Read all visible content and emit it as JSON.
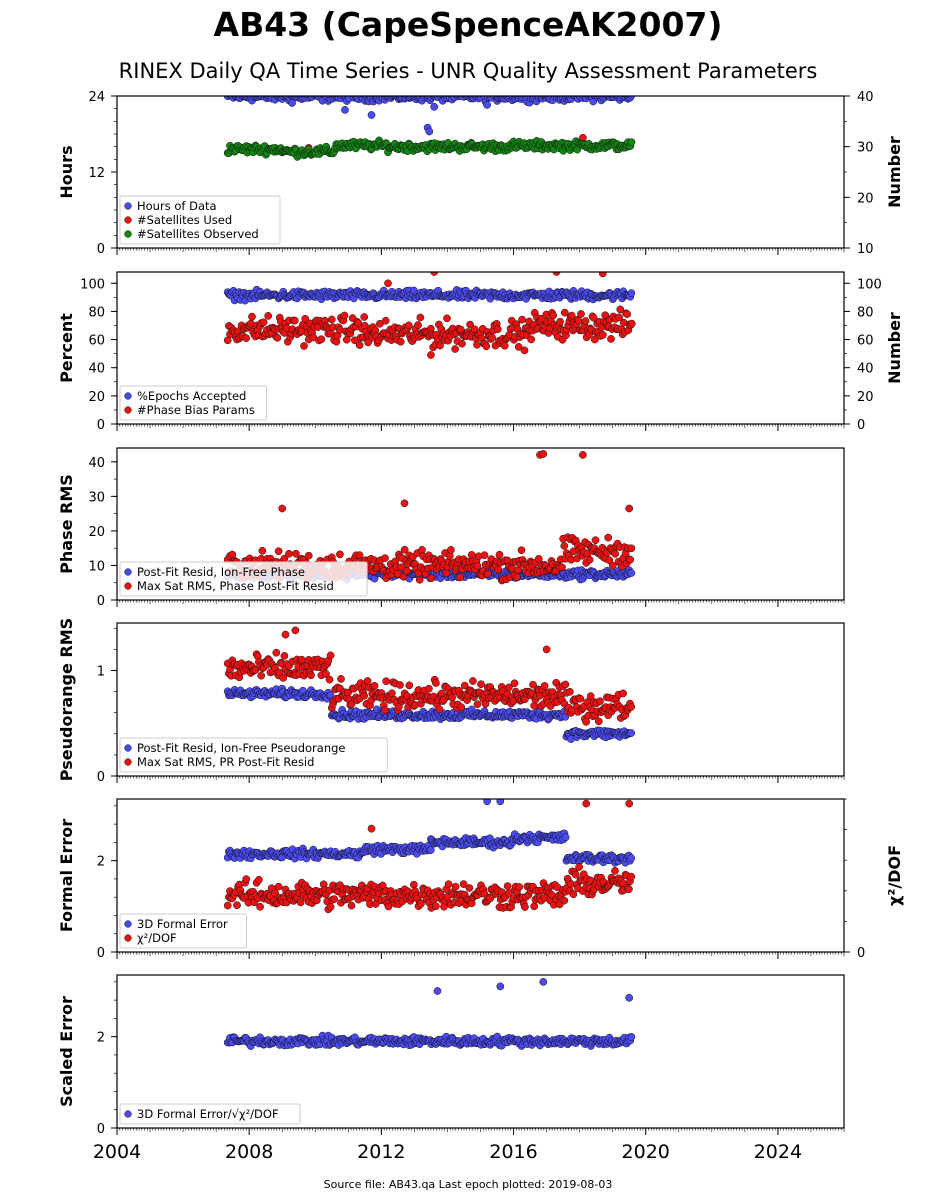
{
  "figure": {
    "title": "AB43 (CapeSpenceAK2007)",
    "subtitle": "RINEX Daily QA Time Series - UNR Quality Assessment Parameters",
    "footer": "Source file: AB43.qa Last epoch plotted: 2019-08-03",
    "data_span": [
      "2007.35",
      "2019.59"
    ]
  },
  "colors": {
    "blue": "#4b4bf5",
    "red": "#ee1111",
    "green": "#118811",
    "edge": "#111111"
  },
  "chart_data": [
    {
      "type": "scatter",
      "xlim": [
        2004,
        2026
      ],
      "xticks": [
        2004,
        2008,
        2012,
        2016,
        2020,
        2024
      ],
      "ylabel": "Hours",
      "ylim": [
        0,
        24
      ],
      "yticks": [
        0,
        12,
        24
      ],
      "y2label": "Number",
      "y2lim": [
        10,
        40
      ],
      "y2ticks": [
        10,
        20,
        30,
        40
      ],
      "legend": "lower-left",
      "series": [
        {
          "name": "Hours of Data",
          "color": "blue",
          "axis": "left",
          "base": 23.9,
          "segments": [
            [
              2007.35,
              2019.59,
              23.9
            ]
          ],
          "outliers": [
            [
              2010.9,
              21.8
            ],
            [
              2011.7,
              21.0
            ],
            [
              2013.4,
              19.0
            ],
            [
              2013.45,
              18.4
            ],
            [
              2013.6,
              22.3
            ],
            [
              2015.2,
              22.6
            ],
            [
              2009.3,
              22.9
            ]
          ]
        },
        {
          "name": "#Satellites Used",
          "color": "red",
          "axis": "left",
          "segments": [],
          "outliers": [
            [
              2018.1,
              17.4
            ],
            [
              2009.8,
              15.8
            ]
          ]
        },
        {
          "name": "#Satellites Observed",
          "color": "green",
          "axis": "right",
          "segments": [
            [
              2007.35,
              2009.0,
              29.5
            ],
            [
              2009.0,
              2010.6,
              29.0
            ],
            [
              2010.6,
              2012.2,
              30.2
            ],
            [
              2012.2,
              2016.0,
              30.0
            ],
            [
              2016.0,
              2019.59,
              30.2
            ]
          ],
          "outliers": []
        }
      ]
    },
    {
      "type": "scatter",
      "xlim": [
        2004,
        2026
      ],
      "xticks": [
        2004,
        2008,
        2012,
        2016,
        2020,
        2024
      ],
      "ylabel": "Percent",
      "ylim": [
        0,
        108
      ],
      "yticks": [
        0,
        20,
        40,
        60,
        80,
        100
      ],
      "y2label": "Number",
      "y2lim": [
        0,
        108
      ],
      "y2ticks": [
        0,
        20,
        40,
        60,
        80,
        100
      ],
      "legend": "lower-left",
      "series": [
        {
          "name": "%Epochs Accepted",
          "color": "blue",
          "axis": "left",
          "segments": [
            [
              2007.35,
              2019.59,
              91.5
            ]
          ],
          "outliers": []
        },
        {
          "name": "#Phase Bias Params",
          "color": "red",
          "axis": "right",
          "segments": [
            [
              2007.35,
              2011.5,
              67
            ],
            [
              2011.5,
              2016.5,
              64
            ],
            [
              2016.5,
              2019.59,
              70
            ]
          ],
          "outliers": [
            [
              2012.2,
              100
            ],
            [
              2013.6,
              108
            ],
            [
              2017.3,
              108
            ],
            [
              2018.7,
              107
            ],
            [
              2013.5,
              49
            ],
            [
              2011.6,
              58
            ]
          ]
        }
      ]
    },
    {
      "type": "scatter",
      "xlim": [
        2004,
        2026
      ],
      "xticks": [
        2004,
        2008,
        2012,
        2016,
        2020,
        2024
      ],
      "ylabel": "Phase RMS",
      "ylim": [
        0,
        44
      ],
      "yticks": [
        0,
        10,
        20,
        30,
        40
      ],
      "legend": "lower-left",
      "series": [
        {
          "name": "Post-Fit Resid, Ion-Free Phase",
          "color": "blue",
          "axis": "left",
          "segments": [
            [
              2007.35,
              2019.59,
              7.5
            ]
          ],
          "outliers": []
        },
        {
          "name": "Max Sat RMS, Phase Post-Fit Resid",
          "color": "red",
          "axis": "left",
          "segments": [
            [
              2007.35,
              2017.5,
              10
            ],
            [
              2017.5,
              2019.59,
              14
            ]
          ],
          "outliers": [
            [
              2016.8,
              42
            ],
            [
              2016.9,
              42.3
            ],
            [
              2018.1,
              42
            ],
            [
              2009.0,
              26.5
            ],
            [
              2012.7,
              28
            ],
            [
              2019.5,
              26.5
            ]
          ]
        }
      ]
    },
    {
      "type": "scatter",
      "xlim": [
        2004,
        2026
      ],
      "xticks": [
        2004,
        2008,
        2012,
        2016,
        2020,
        2024
      ],
      "ylabel": "Pseudorange RMS",
      "ylim": [
        0,
        1.45
      ],
      "yticks": [
        0,
        1
      ],
      "legend": "lower-left",
      "series": [
        {
          "name": "Post-Fit Resid, Ion-Free Pseudorange",
          "color": "blue",
          "axis": "left",
          "segments": [
            [
              2007.35,
              2010.5,
              0.78
            ],
            [
              2010.5,
              2017.6,
              0.58
            ],
            [
              2017.6,
              2019.59,
              0.4
            ]
          ],
          "outliers": []
        },
        {
          "name": "Max Sat RMS, PR Post-Fit Resid",
          "color": "red",
          "axis": "left",
          "segments": [
            [
              2007.35,
              2010.5,
              1.02
            ],
            [
              2010.5,
              2017.6,
              0.76
            ],
            [
              2017.6,
              2019.59,
              0.66
            ]
          ],
          "outliers": [
            [
              2009.4,
              1.38
            ],
            [
              2009.1,
              1.34
            ],
            [
              2017.0,
              1.2
            ]
          ]
        }
      ]
    },
    {
      "type": "scatter",
      "xlim": [
        2004,
        2026
      ],
      "xticks": [
        2004,
        2008,
        2012,
        2016,
        2020,
        2024
      ],
      "ylabel": "Formal Error",
      "ylim": [
        0,
        3.35
      ],
      "yticks": [
        0,
        2
      ],
      "y2label": "χ²/DOF",
      "y2lim": [
        0,
        3.35
      ],
      "y2ticks": [
        0
      ],
      "legend": "lower-left",
      "series": [
        {
          "name": "3D Formal Error",
          "color": "blue",
          "axis": "left",
          "segments": [
            [
              2007.35,
              2011.5,
              2.15
            ],
            [
              2011.5,
              2013.5,
              2.25
            ],
            [
              2013.5,
              2016.0,
              2.4
            ],
            [
              2016.0,
              2017.6,
              2.5
            ],
            [
              2017.6,
              2019.59,
              2.05
            ]
          ],
          "outliers": [
            [
              2015.2,
              3.3
            ],
            [
              2015.6,
              3.3
            ]
          ]
        },
        {
          "name": "χ²/DOF",
          "color": "red",
          "axis": "right",
          "segments": [
            [
              2007.35,
              2017.6,
              1.25
            ],
            [
              2017.6,
              2019.59,
              1.5
            ]
          ],
          "outliers": [
            [
              2018.2,
              3.25
            ],
            [
              2019.5,
              3.25
            ],
            [
              2011.7,
              2.7
            ]
          ]
        }
      ]
    },
    {
      "type": "scatter",
      "xlim": [
        2004,
        2026
      ],
      "xticks": [
        2004,
        2008,
        2012,
        2016,
        2020,
        2024
      ],
      "ylabel": "Scaled Error",
      "ylim": [
        0,
        3.35
      ],
      "yticks": [
        0,
        2
      ],
      "legend": "lower-left",
      "series": [
        {
          "name": "3D Formal Error/√χ²/DOF",
          "color": "blue",
          "axis": "left",
          "segments": [
            [
              2007.35,
              2019.59,
              1.9
            ]
          ],
          "outliers": [
            [
              2016.9,
              3.2
            ],
            [
              2015.6,
              3.1
            ],
            [
              2013.7,
              3.0
            ],
            [
              2019.5,
              2.85
            ]
          ]
        }
      ]
    }
  ]
}
